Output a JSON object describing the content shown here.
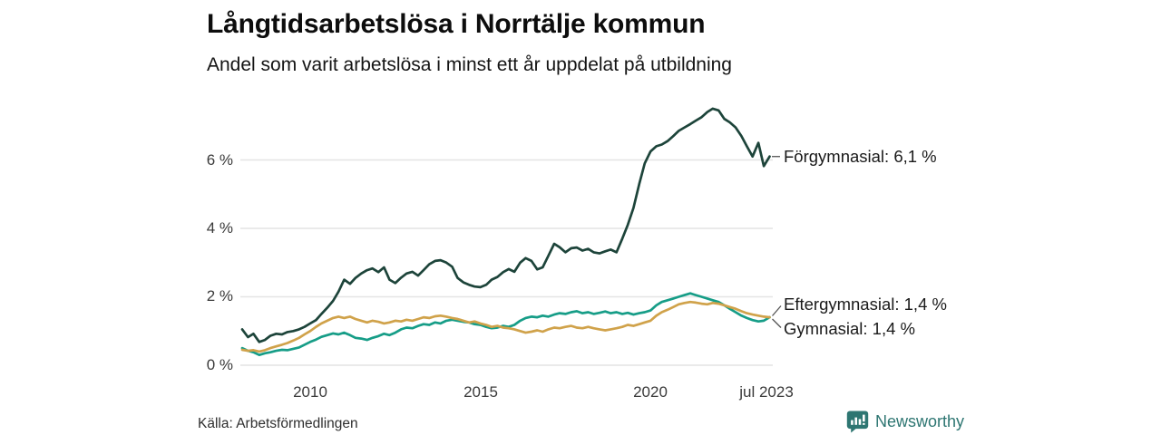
{
  "header": {
    "title": "Långtidsarbetslösa i Norrtälje kommun",
    "subtitle": "Andel som varit arbetslösa i minst ett år uppdelat på utbildning"
  },
  "footer": {
    "source": "Källa: Arbetsförmedlingen",
    "brand": "Newsworthy"
  },
  "colors": {
    "background": "#ffffff",
    "grid": "#e4e4e4",
    "connector": "#555555",
    "forgymnasial": "#1d443a",
    "eftergymnasial": "#169d87",
    "gymnasial": "#d0a24a",
    "brand": "#2e7672"
  },
  "chart_data": {
    "type": "line",
    "title": "Långtidsarbetslösa i Norrtälje kommun",
    "subtitle": "Andel som varit arbetslösa i minst ett år uppdelat på utbildning",
    "unit": "%",
    "grid": "horizontal",
    "legend_position": "end-of-line labels, right side",
    "xlim": [
      2008,
      2023.54
    ],
    "ylim": [
      0,
      8
    ],
    "x_ticks": [
      {
        "label": "2010",
        "value": 2010
      },
      {
        "label": "2015",
        "value": 2015
      },
      {
        "label": "2020",
        "value": 2020
      },
      {
        "label": "jul 2023",
        "value": 2023.54
      }
    ],
    "y_ticks": [
      {
        "label": "0 %",
        "value": 0
      },
      {
        "label": "2 %",
        "value": 2
      },
      {
        "label": "4 %",
        "value": 4
      },
      {
        "label": "6 %",
        "value": 6
      }
    ],
    "x": [
      2008,
      2008.17,
      2008.33,
      2008.5,
      2008.67,
      2008.83,
      2009,
      2009.17,
      2009.33,
      2009.5,
      2009.67,
      2009.83,
      2010,
      2010.17,
      2010.33,
      2010.5,
      2010.67,
      2010.83,
      2011,
      2011.17,
      2011.33,
      2011.5,
      2011.67,
      2011.83,
      2012,
      2012.17,
      2012.33,
      2012.5,
      2012.67,
      2012.83,
      2013,
      2013.17,
      2013.33,
      2013.5,
      2013.67,
      2013.83,
      2014,
      2014.17,
      2014.33,
      2014.5,
      2014.67,
      2014.83,
      2015,
      2015.17,
      2015.33,
      2015.5,
      2015.67,
      2015.83,
      2016,
      2016.17,
      2016.33,
      2016.5,
      2016.67,
      2016.83,
      2017,
      2017.17,
      2017.33,
      2017.5,
      2017.67,
      2017.83,
      2018,
      2018.17,
      2018.33,
      2018.5,
      2018.67,
      2018.83,
      2019,
      2019.17,
      2019.33,
      2019.5,
      2019.67,
      2019.83,
      2020,
      2020.17,
      2020.33,
      2020.5,
      2020.67,
      2020.83,
      2021,
      2021.17,
      2021.33,
      2021.5,
      2021.67,
      2021.83,
      2022,
      2022.17,
      2022.33,
      2022.5,
      2022.67,
      2022.83,
      2023,
      2023.17,
      2023.33,
      2023.5
    ],
    "series": [
      {
        "name": "Förgymnasial",
        "annotation": "Förgymnasial: 6,1 %",
        "end_value": "6,1 %",
        "color": "#1d443a",
        "values": [
          1.05,
          0.82,
          0.92,
          0.68,
          0.74,
          0.86,
          0.92,
          0.9,
          0.97,
          1,
          1.05,
          1.12,
          1.22,
          1.32,
          1.5,
          1.68,
          1.88,
          2.15,
          2.5,
          2.38,
          2.55,
          2.68,
          2.78,
          2.83,
          2.72,
          2.86,
          2.5,
          2.4,
          2.56,
          2.68,
          2.73,
          2.62,
          2.78,
          2.95,
          3.05,
          3.07,
          3,
          2.88,
          2.55,
          2.42,
          2.35,
          2.3,
          2.28,
          2.35,
          2.5,
          2.58,
          2.72,
          2.81,
          2.73,
          3,
          3.13,
          3.05,
          2.8,
          2.86,
          3.2,
          3.55,
          3.45,
          3.3,
          3.42,
          3.44,
          3.35,
          3.4,
          3.3,
          3.27,
          3.33,
          3.38,
          3.3,
          3.7,
          4.1,
          4.6,
          5.3,
          5.9,
          6.25,
          6.4,
          6.45,
          6.55,
          6.7,
          6.85,
          6.95,
          7.05,
          7.15,
          7.25,
          7.4,
          7.5,
          7.45,
          7.2,
          7.1,
          6.95,
          6.7,
          6.4,
          6.1,
          6.5,
          5.82,
          6.1
        ]
      },
      {
        "name": "Eftergymnasial",
        "annotation": "Eftergymnasial: 1,4 %",
        "end_value": "1,4 %",
        "color": "#169d87",
        "values": [
          0.5,
          0.42,
          0.38,
          0.3,
          0.35,
          0.38,
          0.42,
          0.45,
          0.44,
          0.48,
          0.52,
          0.6,
          0.68,
          0.75,
          0.83,
          0.88,
          0.93,
          0.9,
          0.95,
          0.88,
          0.8,
          0.78,
          0.74,
          0.8,
          0.85,
          0.92,
          0.88,
          0.95,
          1.05,
          1.1,
          1.08,
          1.15,
          1.2,
          1.18,
          1.25,
          1.22,
          1.3,
          1.33,
          1.3,
          1.27,
          1.25,
          1.2,
          1.18,
          1.12,
          1.08,
          1.1,
          1.15,
          1.12,
          1.18,
          1.3,
          1.38,
          1.42,
          1.4,
          1.45,
          1.42,
          1.48,
          1.52,
          1.5,
          1.55,
          1.58,
          1.52,
          1.55,
          1.5,
          1.53,
          1.57,
          1.52,
          1.55,
          1.5,
          1.53,
          1.48,
          1.52,
          1.55,
          1.6,
          1.75,
          1.85,
          1.9,
          1.95,
          2,
          2.05,
          2.1,
          2.05,
          2,
          1.95,
          1.9,
          1.85,
          1.75,
          1.65,
          1.55,
          1.45,
          1.38,
          1.32,
          1.28,
          1.3,
          1.4
        ]
      },
      {
        "name": "Gymnasial",
        "annotation": "Gymnasial: 1,4 %",
        "end_value": "1,4 %",
        "color": "#d0a24a",
        "values": [
          0.45,
          0.42,
          0.44,
          0.4,
          0.44,
          0.5,
          0.55,
          0.6,
          0.65,
          0.72,
          0.8,
          0.9,
          1,
          1.12,
          1.22,
          1.3,
          1.38,
          1.42,
          1.38,
          1.42,
          1.35,
          1.3,
          1.25,
          1.3,
          1.27,
          1.22,
          1.25,
          1.3,
          1.28,
          1.33,
          1.3,
          1.35,
          1.4,
          1.38,
          1.43,
          1.45,
          1.42,
          1.38,
          1.35,
          1.3,
          1.25,
          1.28,
          1.22,
          1.18,
          1.12,
          1.15,
          1.1,
          1.08,
          1.05,
          1,
          0.95,
          0.98,
          1.02,
          0.98,
          1.05,
          1.1,
          1.08,
          1.12,
          1.15,
          1.1,
          1.08,
          1.12,
          1.08,
          1.05,
          1.02,
          1.05,
          1.08,
          1.12,
          1.18,
          1.15,
          1.2,
          1.25,
          1.3,
          1.45,
          1.55,
          1.62,
          1.7,
          1.78,
          1.82,
          1.85,
          1.83,
          1.8,
          1.78,
          1.82,
          1.8,
          1.75,
          1.7,
          1.65,
          1.58,
          1.52,
          1.48,
          1.45,
          1.42,
          1.4
        ]
      }
    ]
  }
}
